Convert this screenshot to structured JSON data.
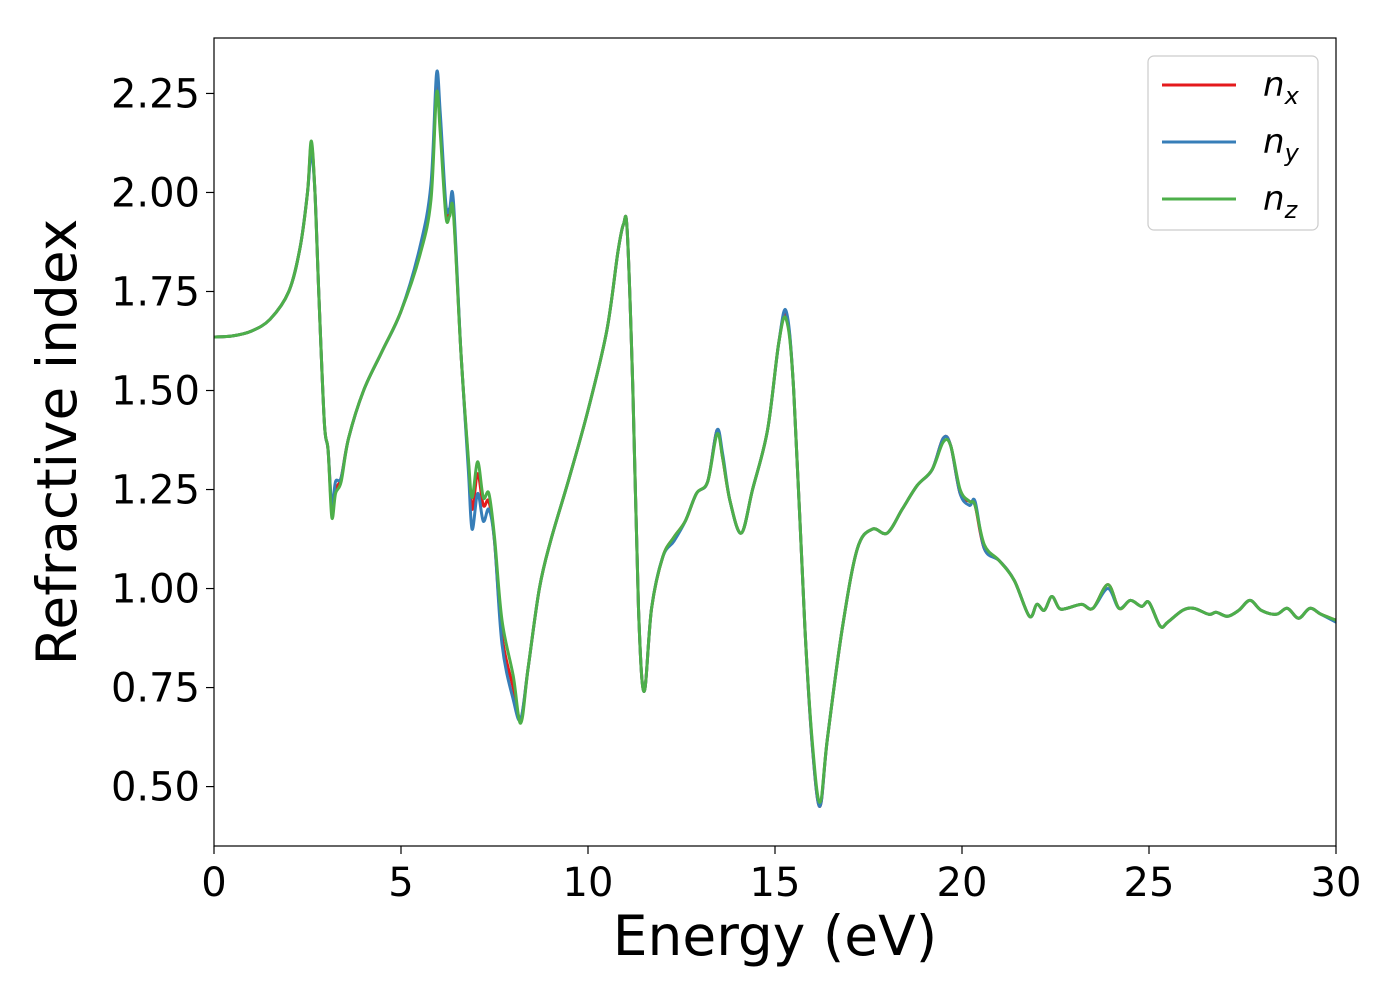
{
  "chart_data": {
    "type": "line",
    "title": "",
    "xlabel": "Energy (eV)",
    "ylabel": "Refractive index",
    "xlim": [
      0,
      30
    ],
    "ylim": [
      0.35,
      2.39
    ],
    "xticks": [
      0,
      5,
      10,
      15,
      20,
      25,
      30
    ],
    "xtick_labels": [
      "0",
      "5",
      "10",
      "15",
      "20",
      "25",
      "30"
    ],
    "yticks": [
      0.5,
      0.75,
      1.0,
      1.25,
      1.5,
      1.75,
      2.0,
      2.25
    ],
    "ytick_labels": [
      "0.50",
      "0.75",
      "1.00",
      "1.25",
      "1.50",
      "1.75",
      "2.00",
      "2.25"
    ],
    "grid": false,
    "legend_position": "top-right",
    "series": [
      {
        "name": "n_x",
        "legend_base": "n",
        "legend_sub": "x",
        "color": "#e41a1c",
        "x": [
          0,
          0.5,
          1.0,
          1.5,
          2.0,
          2.3,
          2.5,
          2.6,
          2.7,
          2.8,
          2.95,
          3.05,
          3.15,
          3.25,
          3.4,
          3.6,
          4.0,
          4.5,
          5.0,
          5.5,
          5.8,
          5.95,
          6.05,
          6.2,
          6.3,
          6.4,
          6.6,
          6.8,
          6.9,
          7.05,
          7.2,
          7.35,
          7.5,
          7.7,
          8.0,
          8.2,
          8.4,
          8.7,
          9.0,
          9.5,
          10.0,
          10.5,
          10.8,
          10.95,
          11.05,
          11.2,
          11.35,
          11.5,
          11.7,
          12.0,
          12.3,
          12.6,
          12.9,
          13.2,
          13.45,
          13.6,
          13.8,
          14.1,
          14.4,
          14.8,
          15.1,
          15.3,
          15.5,
          15.8,
          16.0,
          16.2,
          16.4,
          16.8,
          17.2,
          17.6,
          18.0,
          18.4,
          18.8,
          19.2,
          19.5,
          19.7,
          19.95,
          20.2,
          20.35,
          20.6,
          21.0,
          21.4,
          21.8,
          22.0,
          22.2,
          22.4,
          22.6,
          22.8,
          23.2,
          23.5,
          23.9,
          24.2,
          24.5,
          24.8,
          25.0,
          25.3,
          25.5,
          25.9,
          26.2,
          26.6,
          26.8,
          27.1,
          27.4,
          27.7,
          28.0,
          28.4,
          28.7,
          29.0,
          29.3,
          29.6,
          30.0
        ],
        "y": [
          1.635,
          1.638,
          1.65,
          1.68,
          1.75,
          1.86,
          2.0,
          2.12,
          2.0,
          1.75,
          1.42,
          1.35,
          1.2,
          1.25,
          1.28,
          1.38,
          1.5,
          1.6,
          1.7,
          1.85,
          2.0,
          2.27,
          2.18,
          1.95,
          1.95,
          1.96,
          1.6,
          1.32,
          1.2,
          1.29,
          1.21,
          1.22,
          1.12,
          0.88,
          0.75,
          0.67,
          0.8,
          1.0,
          1.12,
          1.28,
          1.45,
          1.65,
          1.85,
          1.92,
          1.9,
          1.5,
          0.95,
          0.74,
          0.95,
          1.08,
          1.13,
          1.17,
          1.24,
          1.27,
          1.4,
          1.33,
          1.22,
          1.14,
          1.25,
          1.4,
          1.62,
          1.69,
          1.5,
          0.9,
          0.6,
          0.45,
          0.62,
          0.9,
          1.1,
          1.15,
          1.14,
          1.2,
          1.26,
          1.3,
          1.38,
          1.36,
          1.24,
          1.22,
          1.21,
          1.1,
          1.07,
          1.02,
          0.93,
          0.96,
          0.945,
          0.98,
          0.95,
          0.95,
          0.96,
          0.95,
          1.01,
          0.95,
          0.97,
          0.955,
          0.965,
          0.905,
          0.915,
          0.945,
          0.95,
          0.935,
          0.94,
          0.93,
          0.945,
          0.97,
          0.945,
          0.935,
          0.95,
          0.925,
          0.95,
          0.935,
          0.92
        ]
      },
      {
        "name": "n_y",
        "legend_base": "n",
        "legend_sub": "y",
        "color": "#377eb8",
        "x": [
          0,
          0.5,
          1.0,
          1.5,
          2.0,
          2.3,
          2.5,
          2.6,
          2.7,
          2.8,
          2.95,
          3.05,
          3.15,
          3.25,
          3.4,
          3.6,
          4.0,
          4.5,
          5.0,
          5.5,
          5.8,
          5.95,
          6.05,
          6.2,
          6.3,
          6.4,
          6.6,
          6.8,
          6.9,
          7.05,
          7.2,
          7.35,
          7.5,
          7.7,
          8.0,
          8.2,
          8.4,
          8.7,
          9.0,
          9.5,
          10.0,
          10.5,
          10.8,
          10.95,
          11.05,
          11.2,
          11.35,
          11.5,
          11.7,
          12.0,
          12.3,
          12.6,
          12.9,
          13.2,
          13.45,
          13.6,
          13.8,
          14.1,
          14.4,
          14.8,
          15.1,
          15.3,
          15.5,
          15.8,
          16.0,
          16.2,
          16.4,
          16.8,
          17.2,
          17.6,
          18.0,
          18.4,
          18.8,
          19.2,
          19.5,
          19.7,
          19.95,
          20.2,
          20.35,
          20.6,
          21.0,
          21.4,
          21.8,
          22.0,
          22.2,
          22.4,
          22.6,
          22.8,
          23.2,
          23.5,
          23.9,
          24.2,
          24.5,
          24.8,
          25.0,
          25.3,
          25.5,
          25.9,
          26.2,
          26.6,
          26.8,
          27.1,
          27.4,
          27.7,
          28.0,
          28.4,
          28.7,
          29.0,
          29.3,
          29.6,
          30.0
        ],
        "y": [
          1.635,
          1.638,
          1.65,
          1.68,
          1.75,
          1.86,
          2.0,
          2.1,
          2.0,
          1.75,
          1.42,
          1.35,
          1.21,
          1.27,
          1.28,
          1.38,
          1.5,
          1.6,
          1.7,
          1.86,
          2.02,
          2.3,
          2.2,
          1.97,
          1.96,
          1.98,
          1.6,
          1.3,
          1.15,
          1.24,
          1.17,
          1.2,
          1.12,
          0.86,
          0.72,
          0.67,
          0.8,
          1.0,
          1.12,
          1.28,
          1.45,
          1.65,
          1.85,
          1.92,
          1.9,
          1.5,
          0.95,
          0.74,
          0.95,
          1.08,
          1.12,
          1.17,
          1.24,
          1.27,
          1.4,
          1.34,
          1.22,
          1.14,
          1.25,
          1.4,
          1.62,
          1.7,
          1.5,
          0.9,
          0.6,
          0.45,
          0.62,
          0.9,
          1.1,
          1.15,
          1.14,
          1.2,
          1.26,
          1.3,
          1.38,
          1.36,
          1.24,
          1.21,
          1.22,
          1.1,
          1.07,
          1.02,
          0.93,
          0.96,
          0.945,
          0.98,
          0.95,
          0.95,
          0.96,
          0.95,
          1.0,
          0.95,
          0.97,
          0.955,
          0.965,
          0.905,
          0.915,
          0.945,
          0.95,
          0.935,
          0.94,
          0.93,
          0.945,
          0.97,
          0.945,
          0.935,
          0.95,
          0.925,
          0.95,
          0.935,
          0.915
        ]
      },
      {
        "name": "n_z",
        "legend_base": "n",
        "legend_sub": "z",
        "color": "#4daf4a",
        "x": [
          0,
          0.5,
          1.0,
          1.5,
          2.0,
          2.3,
          2.5,
          2.6,
          2.7,
          2.8,
          2.95,
          3.05,
          3.15,
          3.25,
          3.4,
          3.6,
          4.0,
          4.5,
          5.0,
          5.5,
          5.8,
          5.95,
          6.05,
          6.2,
          6.3,
          6.4,
          6.6,
          6.8,
          6.9,
          7.05,
          7.2,
          7.35,
          7.5,
          7.7,
          8.0,
          8.2,
          8.4,
          8.7,
          9.0,
          9.5,
          10.0,
          10.5,
          10.8,
          10.95,
          11.05,
          11.2,
          11.35,
          11.5,
          11.7,
          12.0,
          12.3,
          12.6,
          12.9,
          13.2,
          13.45,
          13.6,
          13.8,
          14.1,
          14.4,
          14.8,
          15.1,
          15.3,
          15.5,
          15.8,
          16.0,
          16.2,
          16.4,
          16.8,
          17.2,
          17.6,
          18.0,
          18.4,
          18.8,
          19.2,
          19.5,
          19.7,
          19.95,
          20.2,
          20.35,
          20.6,
          21.0,
          21.4,
          21.8,
          22.0,
          22.2,
          22.4,
          22.6,
          22.8,
          23.2,
          23.5,
          23.9,
          24.2,
          24.5,
          24.8,
          25.0,
          25.3,
          25.5,
          25.9,
          26.2,
          26.6,
          26.8,
          27.1,
          27.4,
          27.7,
          28.0,
          28.4,
          28.7,
          29.0,
          29.3,
          29.6,
          30.0
        ],
        "y": [
          1.635,
          1.638,
          1.65,
          1.68,
          1.75,
          1.86,
          2.0,
          2.13,
          2.0,
          1.75,
          1.42,
          1.35,
          1.18,
          1.24,
          1.27,
          1.38,
          1.5,
          1.6,
          1.7,
          1.84,
          1.98,
          2.25,
          2.15,
          1.94,
          1.94,
          1.95,
          1.6,
          1.33,
          1.23,
          1.32,
          1.23,
          1.24,
          1.13,
          0.92,
          0.78,
          0.66,
          0.8,
          1.0,
          1.12,
          1.28,
          1.45,
          1.65,
          1.85,
          1.92,
          1.9,
          1.5,
          0.95,
          0.74,
          0.95,
          1.08,
          1.13,
          1.17,
          1.24,
          1.27,
          1.39,
          1.33,
          1.22,
          1.14,
          1.25,
          1.4,
          1.62,
          1.68,
          1.5,
          0.9,
          0.61,
          0.46,
          0.62,
          0.9,
          1.1,
          1.15,
          1.14,
          1.2,
          1.26,
          1.3,
          1.37,
          1.36,
          1.25,
          1.22,
          1.21,
          1.11,
          1.07,
          1.02,
          0.93,
          0.96,
          0.945,
          0.98,
          0.95,
          0.95,
          0.96,
          0.95,
          1.01,
          0.95,
          0.97,
          0.955,
          0.965,
          0.905,
          0.915,
          0.945,
          0.95,
          0.935,
          0.94,
          0.93,
          0.945,
          0.97,
          0.945,
          0.935,
          0.95,
          0.925,
          0.95,
          0.935,
          0.92
        ]
      }
    ]
  }
}
